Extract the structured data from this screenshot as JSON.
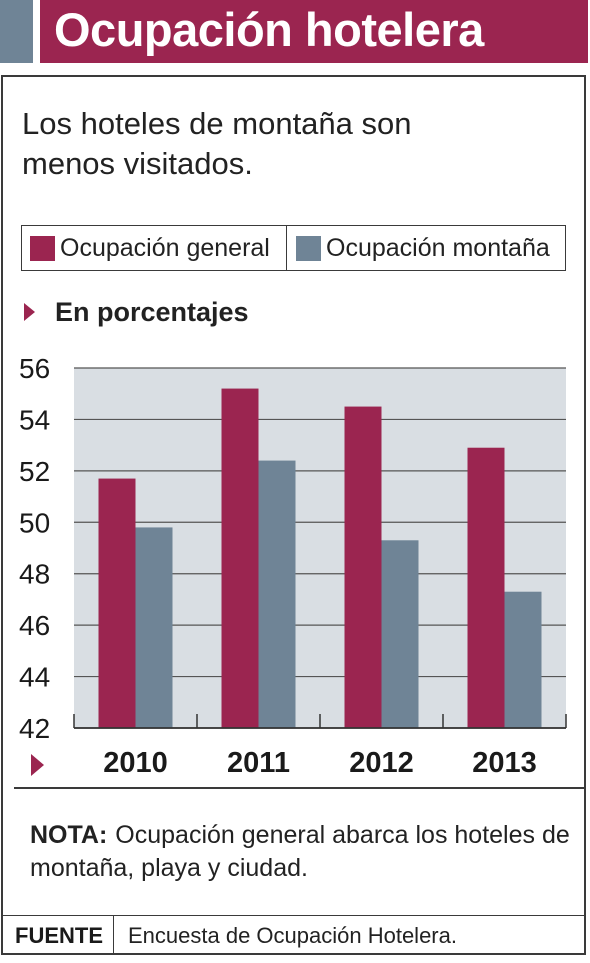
{
  "header": {
    "title": "Ocupación hotelera"
  },
  "subtitle": "Los hoteles de montaña son menos visitados.",
  "units_label": "En porcentajes",
  "note": {
    "label": "NOTA:",
    "text": "Ocupación general abarca los hoteles de montaña, playa y ciudad."
  },
  "source": {
    "label": "FUENTE",
    "text": "Encuesta de Ocupación Hotelera."
  },
  "colors": {
    "general": "#9b2550",
    "montana": "#6f8496",
    "plot_bg": "#d9dee3",
    "grid": "#555555"
  },
  "chart_data": {
    "type": "bar",
    "categories": [
      "2010",
      "2011",
      "2012",
      "2013"
    ],
    "series": [
      {
        "name": "Ocupación general",
        "values": [
          51.7,
          55.2,
          54.5,
          52.9
        ]
      },
      {
        "name": "Ocupación montaña",
        "values": [
          49.8,
          52.4,
          49.3,
          47.3
        ]
      }
    ],
    "ylim": [
      42,
      56
    ],
    "yticks": [
      "42",
      "44",
      "46",
      "48",
      "50",
      "52",
      "54",
      "56"
    ],
    "grid": true,
    "legend": "top"
  }
}
